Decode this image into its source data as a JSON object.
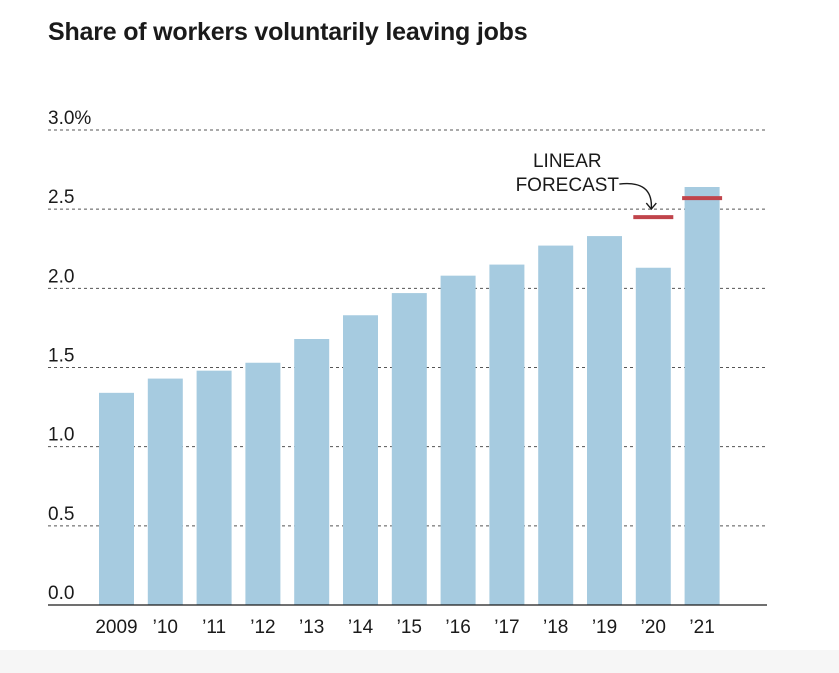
{
  "chart_data": {
    "type": "bar",
    "title": "Share of workers voluntarily leaving jobs",
    "categories": [
      "2009",
      "’10",
      "’11",
      "’12",
      "’13",
      "’14",
      "’15",
      "’16",
      "’17",
      "’18",
      "’19",
      "’20",
      "’21"
    ],
    "values": [
      1.34,
      1.43,
      1.48,
      1.53,
      1.68,
      1.83,
      1.97,
      2.08,
      2.15,
      2.27,
      2.33,
      2.13,
      2.64
    ],
    "y_ticks": [
      {
        "value": 3.0,
        "label": "3.0%"
      },
      {
        "value": 2.5,
        "label": "2.5"
      },
      {
        "value": 2.0,
        "label": "2.0"
      },
      {
        "value": 1.5,
        "label": "1.5"
      },
      {
        "value": 1.0,
        "label": "1.0"
      },
      {
        "value": 0.5,
        "label": "0.5"
      },
      {
        "value": 0.0,
        "label": "0.0"
      }
    ],
    "ylim": [
      0,
      3.0
    ],
    "xlabel": "",
    "ylabel": "",
    "grid": "dashed horizontal",
    "forecast": {
      "label_lines": [
        "LINEAR",
        "FORECAST"
      ],
      "values": [
        {
          "category": "’20",
          "value": 2.45
        },
        {
          "category": "’21",
          "value": 2.57
        }
      ]
    },
    "colors": {
      "bar": "#a6cbe0",
      "forecast": "#c0444b",
      "grid": "#555555",
      "axis": "#1a1a1a",
      "text": "#1a1a1a"
    }
  }
}
